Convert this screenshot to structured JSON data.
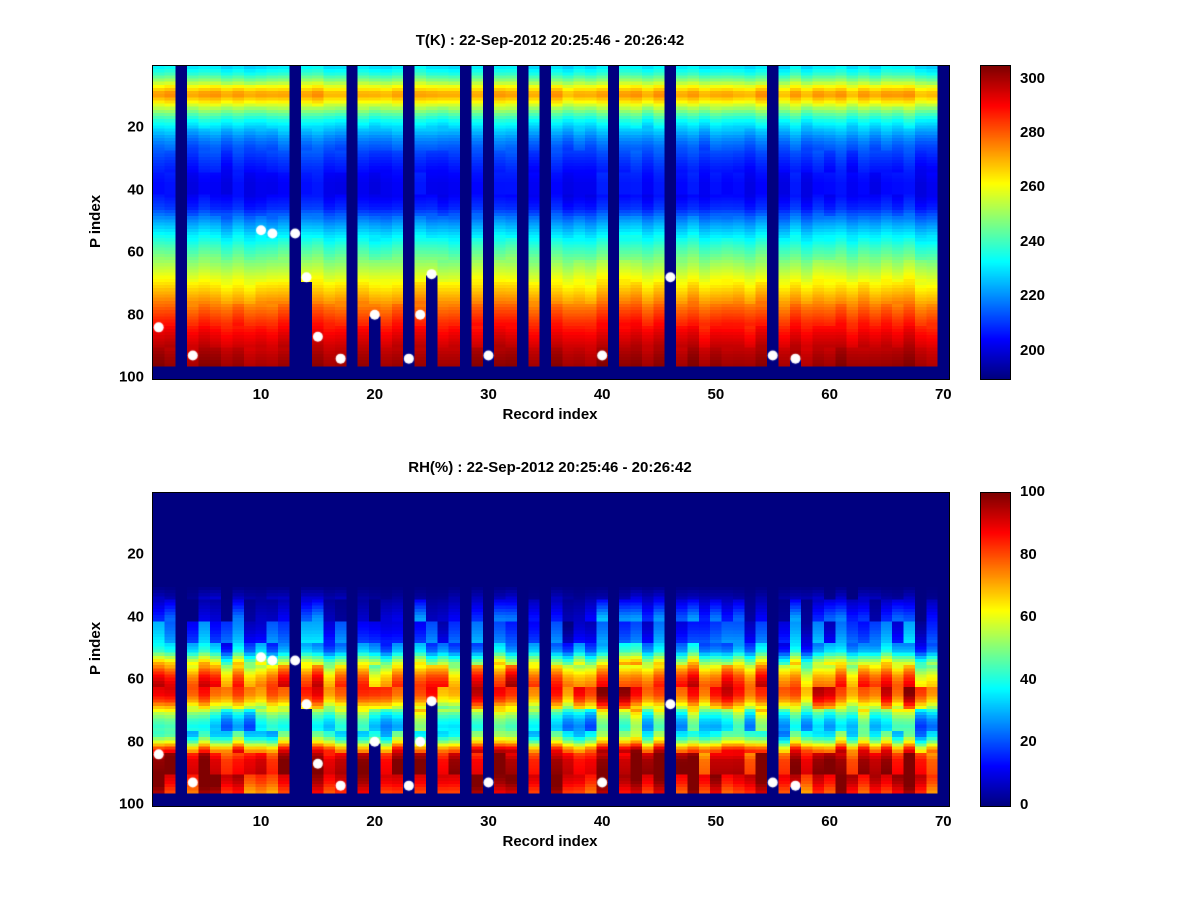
{
  "figure": {
    "background": "#ffffff",
    "missing_data_color": "#00008f",
    "marker_color": "#ffffff"
  },
  "chart_data": [
    {
      "type": "heatmap",
      "title": "T(K) : 22-Sep-2012 20:25:46 - 20:26:42",
      "xlabel": "Record index",
      "ylabel": "P index",
      "x_range": [
        1,
        70
      ],
      "y_range": [
        1,
        100
      ],
      "y_reversed": true,
      "x_ticks": [
        10,
        20,
        30,
        40,
        50,
        60,
        70
      ],
      "y_ticks": [
        20,
        40,
        60,
        80,
        100
      ],
      "colormap": "jet",
      "caxis": [
        190,
        305
      ],
      "colorbar_ticks": [
        200,
        220,
        240,
        260,
        280,
        300
      ],
      "units": "K",
      "grid": false,
      "profile": [
        [
          1,
          231
        ],
        [
          3,
          238
        ],
        [
          5,
          248
        ],
        [
          7,
          261
        ],
        [
          9,
          271
        ],
        [
          10,
          272
        ],
        [
          12,
          263
        ],
        [
          14,
          252
        ],
        [
          16,
          243
        ],
        [
          18,
          235
        ],
        [
          20,
          229
        ],
        [
          23,
          221
        ],
        [
          26,
          215
        ],
        [
          30,
          210
        ],
        [
          34,
          206
        ],
        [
          38,
          204
        ],
        [
          42,
          204
        ],
        [
          46,
          209
        ],
        [
          50,
          220
        ],
        [
          54,
          230
        ],
        [
          58,
          239
        ],
        [
          62,
          247
        ],
        [
          66,
          255
        ],
        [
          70,
          263
        ],
        [
          74,
          271
        ],
        [
          78,
          279
        ],
        [
          82,
          286
        ],
        [
          86,
          292
        ],
        [
          90,
          297
        ],
        [
          93,
          300
        ],
        [
          96,
          302
        ]
      ],
      "noise": {
        "column_amp": 2.5,
        "cell_amp": 1.5,
        "gate_low": 0
      },
      "missing_records": [
        3,
        13,
        18,
        23,
        28,
        30,
        33,
        35,
        41,
        46,
        55,
        70
      ],
      "partial_missing": [
        {
          "record": 14,
          "from_p": 70
        },
        {
          "record": 20,
          "from_p": 81
        },
        {
          "record": 25,
          "from_p": 68
        },
        {
          "record": 57,
          "from_p": 95
        }
      ],
      "missing_bottom_rows_from_p": 97,
      "markers": [
        [
          1,
          84
        ],
        [
          4,
          93
        ],
        [
          10,
          53
        ],
        [
          11,
          54
        ],
        [
          13,
          54
        ],
        [
          14,
          68
        ],
        [
          15,
          87
        ],
        [
          17,
          94
        ],
        [
          20,
          80
        ],
        [
          23,
          94
        ],
        [
          24,
          80
        ],
        [
          25,
          67
        ],
        [
          30,
          93
        ],
        [
          40,
          93
        ],
        [
          46,
          68
        ],
        [
          55,
          93
        ],
        [
          57,
          94
        ]
      ],
      "marker_style": {
        "color": "#ffffff",
        "radius": 5
      }
    },
    {
      "type": "heatmap",
      "title": "RH(%) : 22-Sep-2012 20:25:46 - 20:26:42",
      "xlabel": "Record index",
      "ylabel": "P index",
      "x_range": [
        1,
        70
      ],
      "y_range": [
        1,
        100
      ],
      "y_reversed": true,
      "x_ticks": [
        10,
        20,
        30,
        40,
        50,
        60,
        70
      ],
      "y_ticks": [
        20,
        40,
        60,
        80,
        100
      ],
      "colormap": "jet",
      "caxis": [
        0,
        100
      ],
      "colorbar_ticks": [
        0,
        20,
        40,
        60,
        80,
        100
      ],
      "units": "%",
      "grid": false,
      "profile": [
        [
          1,
          0
        ],
        [
          30,
          0
        ],
        [
          33,
          3
        ],
        [
          36,
          8
        ],
        [
          40,
          14
        ],
        [
          44,
          17
        ],
        [
          48,
          22
        ],
        [
          51,
          30
        ],
        [
          53,
          45
        ],
        [
          55,
          58
        ],
        [
          57,
          68
        ],
        [
          59,
          76
        ],
        [
          61,
          81
        ],
        [
          63,
          84
        ],
        [
          65,
          82
        ],
        [
          67,
          75
        ],
        [
          69,
          62
        ],
        [
          71,
          48
        ],
        [
          73,
          40
        ],
        [
          75,
          36
        ],
        [
          78,
          40
        ],
        [
          80,
          55
        ],
        [
          82,
          75
        ],
        [
          84,
          88
        ],
        [
          86,
          93
        ],
        [
          90,
          95
        ],
        [
          93,
          91
        ],
        [
          96,
          84
        ]
      ],
      "noise": {
        "column_amp": 9,
        "cell_amp": 10,
        "gate_low": 15
      },
      "missing_records": [
        3,
        13,
        18,
        23,
        28,
        30,
        33,
        35,
        41,
        46,
        55,
        70
      ],
      "partial_missing": [
        {
          "record": 14,
          "from_p": 70
        },
        {
          "record": 20,
          "from_p": 81
        },
        {
          "record": 25,
          "from_p": 68
        },
        {
          "record": 57,
          "from_p": 95
        }
      ],
      "missing_bottom_rows_from_p": 97,
      "markers": [
        [
          1,
          84
        ],
        [
          4,
          93
        ],
        [
          10,
          53
        ],
        [
          11,
          54
        ],
        [
          13,
          54
        ],
        [
          14,
          68
        ],
        [
          15,
          87
        ],
        [
          17,
          94
        ],
        [
          20,
          80
        ],
        [
          23,
          94
        ],
        [
          24,
          80
        ],
        [
          25,
          67
        ],
        [
          30,
          93
        ],
        [
          40,
          93
        ],
        [
          46,
          68
        ],
        [
          55,
          93
        ],
        [
          57,
          94
        ]
      ],
      "marker_style": {
        "color": "#ffffff",
        "radius": 5
      }
    }
  ]
}
